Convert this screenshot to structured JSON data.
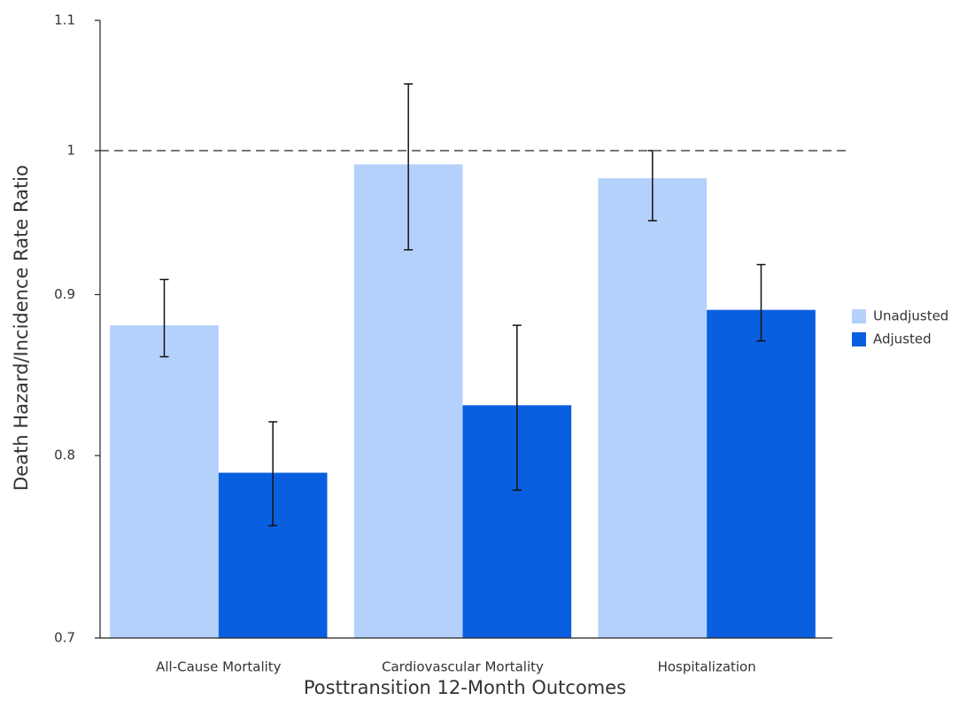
{
  "chart_data": {
    "type": "bar",
    "x_label": "Posttransition 12-Month Outcomes",
    "y_label": "Death Hazard/Incidence Rate Ratio",
    "categories": [
      "All-Cause Mortality",
      "Cardiovascular Mortality",
      "Hospitalization"
    ],
    "series": [
      {
        "name": "Unadjusted",
        "color": "#b3d1fb",
        "values": [
          0.88,
          0.99,
          0.98
        ],
        "lower": [
          0.86,
          0.93,
          0.95
        ],
        "upper": [
          0.91,
          1.05,
          1.0
        ]
      },
      {
        "name": "Adjusted",
        "color": "#0a5fe0",
        "values": [
          0.79,
          0.83,
          0.89
        ],
        "lower": [
          0.76,
          0.78,
          0.87
        ],
        "upper": [
          0.82,
          0.88,
          0.92
        ]
      }
    ],
    "ylim": [
      0.7,
      1.1
    ],
    "yticks": [
      0.7,
      0.8,
      0.9,
      1,
      1.1
    ],
    "log_scale": true,
    "reference_line": 1,
    "legend": "right"
  }
}
